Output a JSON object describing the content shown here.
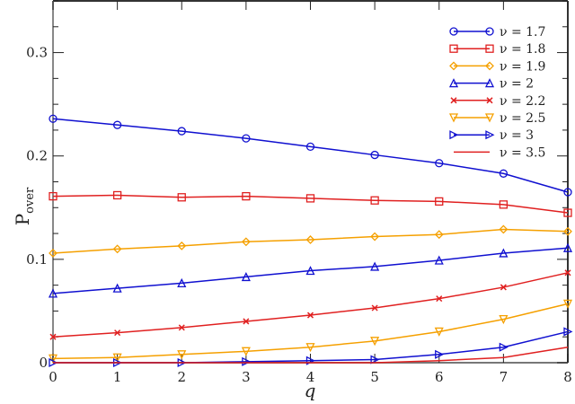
{
  "chart_data": {
    "type": "line",
    "title": "",
    "xlabel": "q",
    "ylabel": "P_over",
    "ylabel_main": "P",
    "ylabel_sub": "over",
    "xlim": [
      0,
      8
    ],
    "ylim": [
      0,
      0.35
    ],
    "xticks": [
      0,
      1,
      2,
      3,
      4,
      5,
      6,
      7,
      8
    ],
    "yticks": [
      0,
      0.1,
      0.2,
      0.3
    ],
    "ytick_labels": [
      "0",
      "0.1",
      "0.2",
      "0.3"
    ],
    "grid": false,
    "legend_position": "upper right",
    "x": [
      0,
      1,
      2,
      3,
      4,
      5,
      6,
      7,
      8
    ],
    "series": [
      {
        "name": "ν = 1.7",
        "color": "#1010d0",
        "marker": "circle",
        "values": [
          0.236,
          0.23,
          0.224,
          0.217,
          0.209,
          0.201,
          0.193,
          0.183,
          0.165
        ]
      },
      {
        "name": "ν = 1.8",
        "color": "#e02020",
        "marker": "square",
        "values": [
          0.161,
          0.162,
          0.16,
          0.161,
          0.159,
          0.157,
          0.156,
          0.153,
          0.145
        ]
      },
      {
        "name": "ν = 1.9",
        "color": "#f5a000",
        "marker": "diamond",
        "values": [
          0.106,
          0.11,
          0.113,
          0.117,
          0.119,
          0.122,
          0.124,
          0.129,
          0.127
        ]
      },
      {
        "name": "ν = 2",
        "color": "#1010d0",
        "marker": "triangle-up",
        "values": [
          0.067,
          0.072,
          0.077,
          0.083,
          0.089,
          0.093,
          0.099,
          0.106,
          0.111
        ]
      },
      {
        "name": "ν = 2.2",
        "color": "#e02020",
        "marker": "x",
        "values": [
          0.025,
          0.029,
          0.034,
          0.04,
          0.046,
          0.053,
          0.062,
          0.073,
          0.087
        ]
      },
      {
        "name": "ν = 2.5",
        "color": "#f5a000",
        "marker": "triangle-down",
        "values": [
          0.004,
          0.005,
          0.008,
          0.011,
          0.015,
          0.021,
          0.03,
          0.042,
          0.057
        ]
      },
      {
        "name": "ν = 3",
        "color": "#1010d0",
        "marker": "triangle-right",
        "values": [
          0.0,
          0.0,
          0.0,
          0.001,
          0.002,
          0.003,
          0.008,
          0.015,
          0.03
        ]
      },
      {
        "name": "ν = 3.5",
        "color": "#e02020",
        "marker": "none",
        "values": [
          0.0,
          0.0,
          0.0,
          0.0,
          0.0,
          0.0,
          0.002,
          0.005,
          0.015
        ]
      }
    ]
  }
}
